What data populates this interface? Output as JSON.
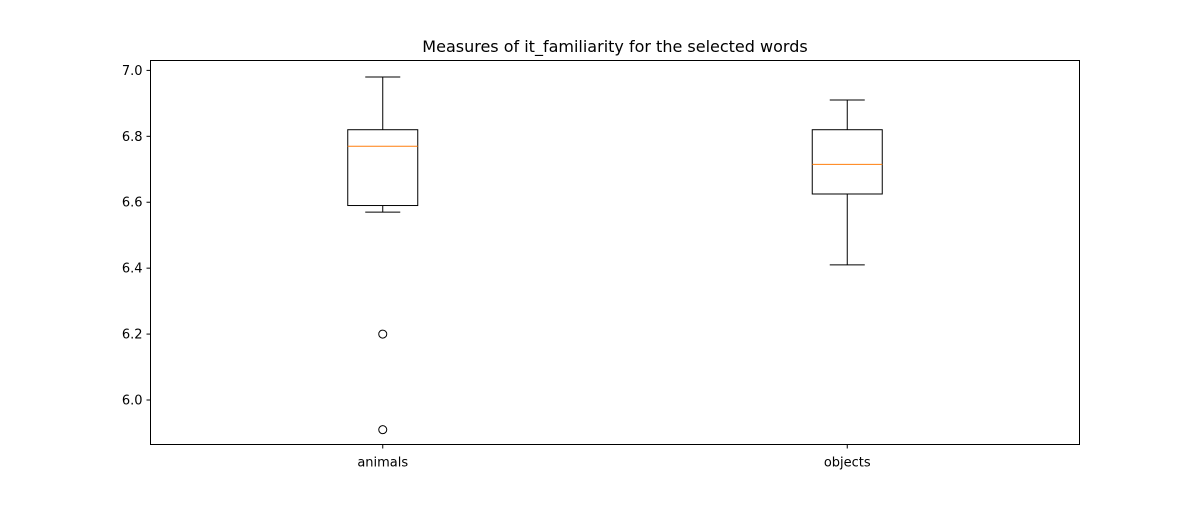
{
  "chart_data": {
    "type": "box",
    "title": "Measures of it_familiarity for the selected words",
    "xlabel": "",
    "ylabel": "",
    "ylim": [
      5.865,
      7.03
    ],
    "yticks": [
      6.0,
      6.2,
      6.4,
      6.6,
      6.8,
      7.0
    ],
    "ytick_labels": [
      "6.0",
      "6.2",
      "6.4",
      "6.6",
      "6.8",
      "7.0"
    ],
    "categories": [
      "animals",
      "objects"
    ],
    "boxes": [
      {
        "category": "animals",
        "whisker_low": 6.57,
        "q1": 6.59,
        "median": 6.77,
        "q3": 6.82,
        "whisker_high": 6.98,
        "outliers": [
          6.2,
          5.91
        ]
      },
      {
        "category": "objects",
        "whisker_low": 6.41,
        "q1": 6.625,
        "median": 6.715,
        "q3": 6.82,
        "whisker_high": 6.91,
        "outliers": []
      }
    ],
    "grid": false,
    "colors": {
      "box": "#000000",
      "median": "#ff7f0e",
      "outlier": "#000000"
    }
  }
}
